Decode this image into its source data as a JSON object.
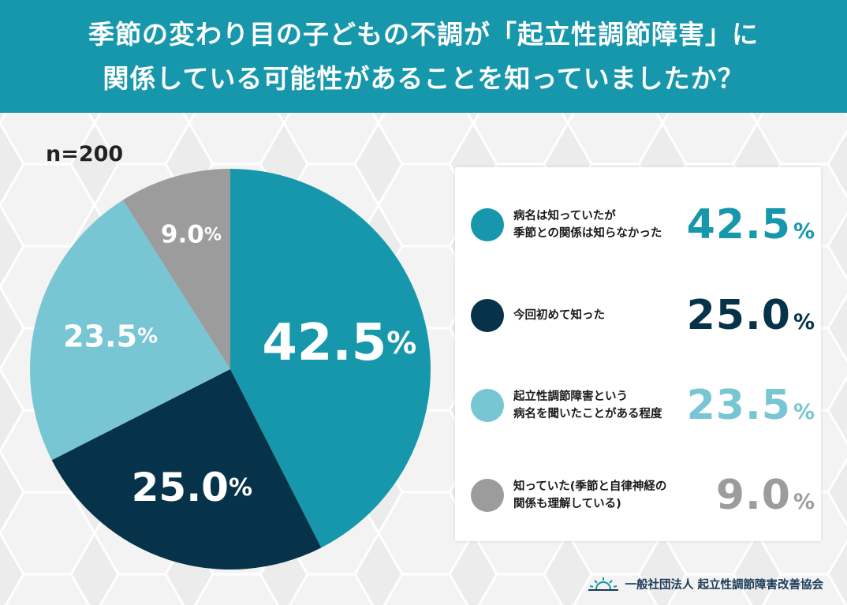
{
  "header": {
    "title_line1": "季節の変わり目の子どもの不調が「起立性調節障害」に",
    "title_line2": "関係している可能性があることを知っていましたか？"
  },
  "sample_size": "n=200",
  "percent_sign": "%",
  "chart_data": {
    "type": "pie",
    "title": "季節の変わり目の子どもの不調が「起立性調節障害」に関係している可能性があることを知っていましたか？",
    "sample": "n=200",
    "slices": [
      {
        "label": "病名は知っていたが\n季節との関係は知らなかった",
        "value": 42.5,
        "display": "42.5",
        "color": "#1797ac"
      },
      {
        "label": "今回初めて知った",
        "value": 25.0,
        "display": "25.0",
        "color": "#06324a"
      },
      {
        "label": "起立性調節障害という\n病名を聞いたことがある程度",
        "value": 23.5,
        "display": "23.5",
        "color": "#78c5d4"
      },
      {
        "label": "知っていた(季節と自律神経の\n関係も理解している)",
        "value": 9.0,
        "display": "9.0",
        "color": "#9c9c9c"
      }
    ],
    "unit": "%"
  },
  "footer": {
    "org_name": "一般社団法人 起立性調節障害改善協会",
    "logo_icon": "sunrise-logo-icon"
  }
}
